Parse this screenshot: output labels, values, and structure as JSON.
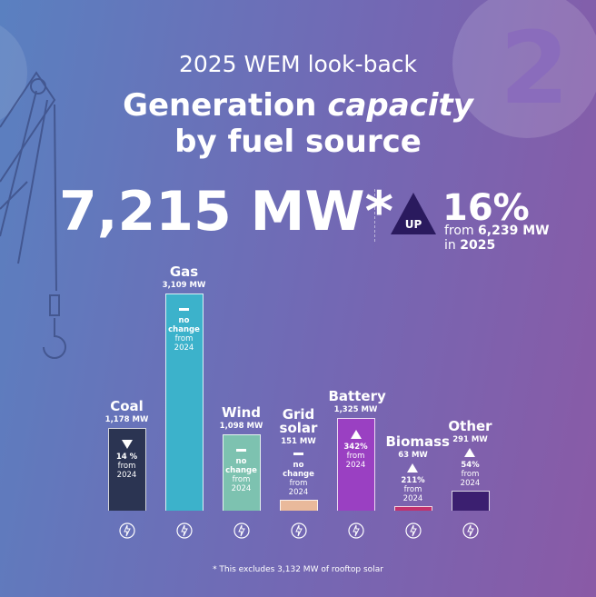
{
  "header": {
    "subtitle": "2025 WEM look-back",
    "title_start": "Generation",
    "title_italic": "capacity",
    "title_end": "by fuel source",
    "badge": "2"
  },
  "total": {
    "value_label": "7,215 MW*",
    "direction": "UP",
    "change": "16%",
    "from_text": "from",
    "from_value": "6,239 MW",
    "in_text": "in",
    "year": "2025"
  },
  "chart_data": {
    "type": "bar",
    "categories": [
      "Coal",
      "Gas",
      "Wind",
      "Grid solar",
      "Battery",
      "Biomass",
      "Other"
    ],
    "values": [
      1178,
      3109,
      1098,
      151,
      1325,
      63,
      291
    ],
    "value_labels": [
      "1,178 MW",
      "3,109 MW",
      "1,098 MW",
      "151 MW",
      "1,325 MW",
      "63 MW",
      "291 MW"
    ],
    "colors": [
      "#2b3452",
      "#3cb2cb",
      "#7dc2b0",
      "#e9b99b",
      "#9a40c2",
      "#c2316c",
      "#3b1f70"
    ],
    "change_labels": [
      "14 %",
      "no change",
      "no change",
      "no change",
      "342%",
      "211%",
      "54%"
    ],
    "change_directions": [
      "down",
      "none",
      "none",
      "none",
      "up",
      "up",
      "up"
    ],
    "change_from": "from",
    "change_year": "2024"
  },
  "footnote": "* This excludes 3,132 MW of rooftop solar"
}
